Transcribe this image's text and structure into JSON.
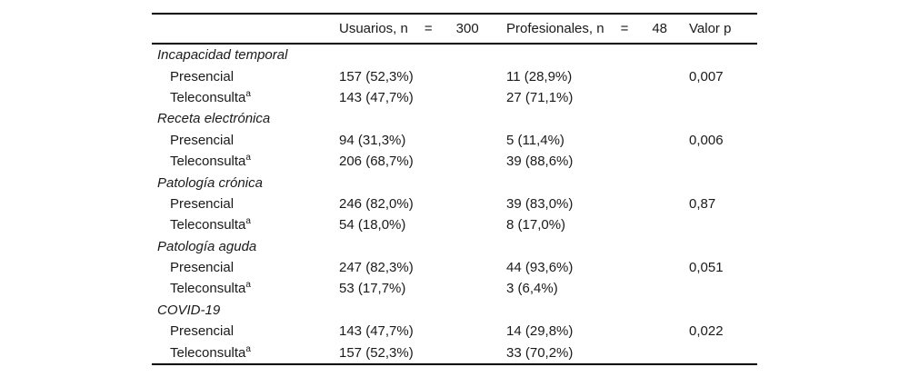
{
  "page": {
    "background": "#ffffff",
    "text_color": "#1a1a1a",
    "rule_color": "#000000"
  },
  "table": {
    "header": {
      "usuarios_label": "Usuarios, n",
      "usuarios_eq": "=",
      "usuarios_n": "300",
      "profesionales_label": "Profesionales, n",
      "profesionales_eq": "=",
      "profesionales_n": "48",
      "valor_p": "Valor p"
    },
    "sections": [
      {
        "category": "Incapacidad temporal",
        "rows": [
          {
            "label": "Presencial",
            "sup": "",
            "usuarios": "157 (52,3%)",
            "profesionales": "11 (28,9%)",
            "valor_p": "0,007"
          },
          {
            "label": "Teleconsulta",
            "sup": "a",
            "usuarios": "143 (47,7%)",
            "profesionales": "27 (71,1%)",
            "valor_p": ""
          }
        ]
      },
      {
        "category": "Receta electrónica",
        "rows": [
          {
            "label": "Presencial",
            "sup": "",
            "usuarios": "94 (31,3%)",
            "profesionales": "5 (11,4%)",
            "valor_p": "0,006"
          },
          {
            "label": "Teleconsulta",
            "sup": "a",
            "usuarios": "206 (68,7%)",
            "profesionales": "39 (88,6%)",
            "valor_p": ""
          }
        ]
      },
      {
        "category": "Patología crónica",
        "rows": [
          {
            "label": "Presencial",
            "sup": "",
            "usuarios": "246 (82,0%)",
            "profesionales": "39 (83,0%)",
            "valor_p": "0,87"
          },
          {
            "label": "Teleconsulta",
            "sup": "a",
            "usuarios": "54 (18,0%)",
            "profesionales": "8 (17,0%)",
            "valor_p": ""
          }
        ]
      },
      {
        "category": "Patología aguda",
        "rows": [
          {
            "label": "Presencial",
            "sup": "",
            "usuarios": "247 (82,3%)",
            "profesionales": "44 (93,6%)",
            "valor_p": "0,051"
          },
          {
            "label": "Teleconsulta",
            "sup": "a",
            "usuarios": "53 (17,7%)",
            "profesionales": "3 (6,4%)",
            "valor_p": ""
          }
        ]
      },
      {
        "category": "COVID-19",
        "rows": [
          {
            "label": "Presencial",
            "sup": "",
            "usuarios": "143 (47,7%)",
            "profesionales": "14 (29,8%)",
            "valor_p": "0,022"
          },
          {
            "label": "Teleconsulta",
            "sup": "a",
            "usuarios": "157 (52,3%)",
            "profesionales": "33 (70,2%)",
            "valor_p": ""
          }
        ]
      }
    ]
  }
}
